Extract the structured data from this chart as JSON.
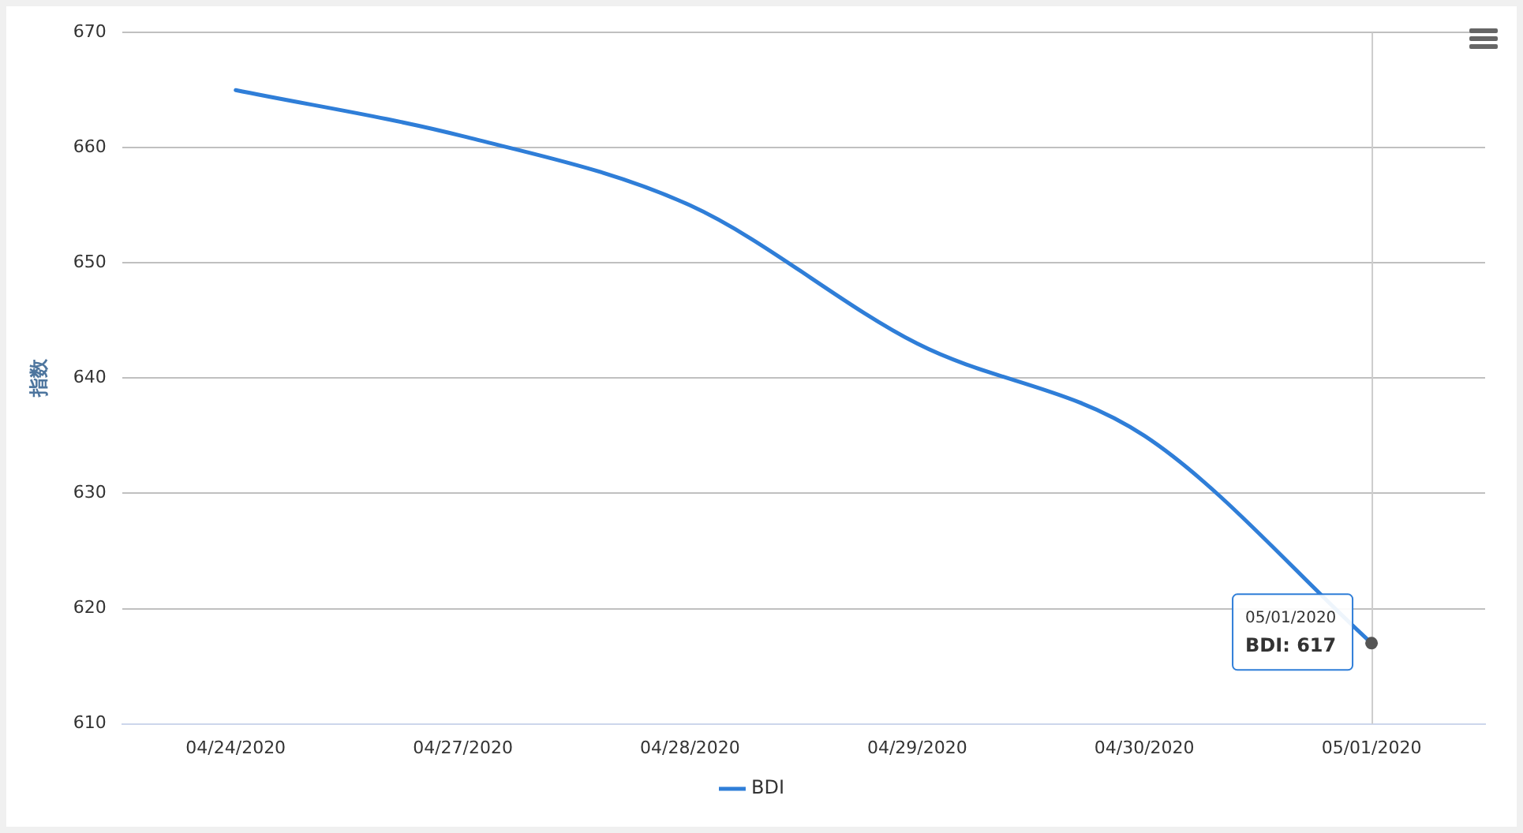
{
  "chart_data": {
    "type": "line",
    "ylabel": "指数",
    "categories": [
      "04/24/2020",
      "04/27/2020",
      "04/28/2020",
      "04/29/2020",
      "04/30/2020",
      "05/01/2020"
    ],
    "series": [
      {
        "name": "BDI",
        "color": "#2f7ed8",
        "values": [
          665,
          661,
          655,
          643,
          635,
          617
        ]
      }
    ],
    "ylim": [
      610,
      670
    ],
    "yticks": [
      610,
      620,
      630,
      640,
      650,
      660,
      670
    ],
    "grid": "y",
    "legend": "bottom",
    "marker": "none",
    "ref_lines": [
      {
        "axis": "x",
        "value": "05/01/2020",
        "color": "#cccccc"
      }
    ],
    "annotations": [
      {
        "text": "05/01/2020\nBDI: 617",
        "x": "05/01/2020",
        "y": 617
      }
    ]
  }
}
